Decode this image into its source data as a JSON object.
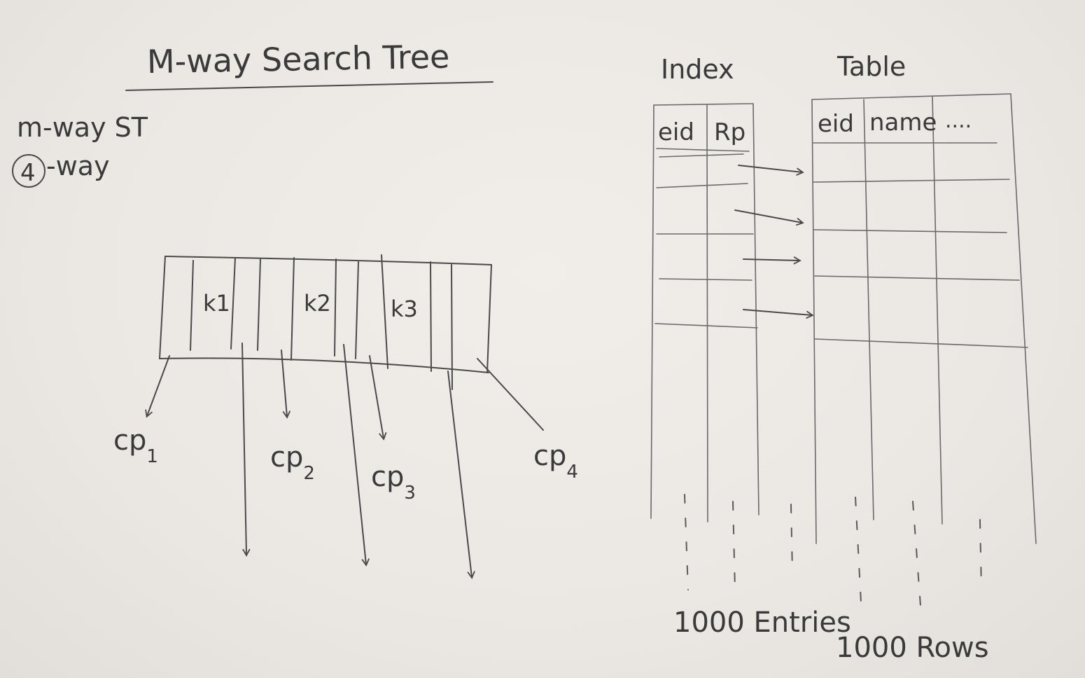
{
  "title": "M-way Search Tree",
  "notes": {
    "line1": "m-way ST",
    "degree_value": "4",
    "degree_suffix": "-way"
  },
  "node": {
    "keys": [
      "k1",
      "k2",
      "k3"
    ],
    "child_pointers": [
      {
        "base": "cp",
        "sub": "1"
      },
      {
        "base": "cp",
        "sub": "2"
      },
      {
        "base": "cp",
        "sub": "3"
      },
      {
        "base": "cp",
        "sub": "4"
      }
    ]
  },
  "index": {
    "label": "Index",
    "columns": [
      "eid",
      "Rp"
    ],
    "footer": "1000 Entries"
  },
  "table": {
    "label": "Table",
    "columns": [
      "eid",
      "name",
      "...."
    ],
    "footer": "1000 Rows"
  }
}
